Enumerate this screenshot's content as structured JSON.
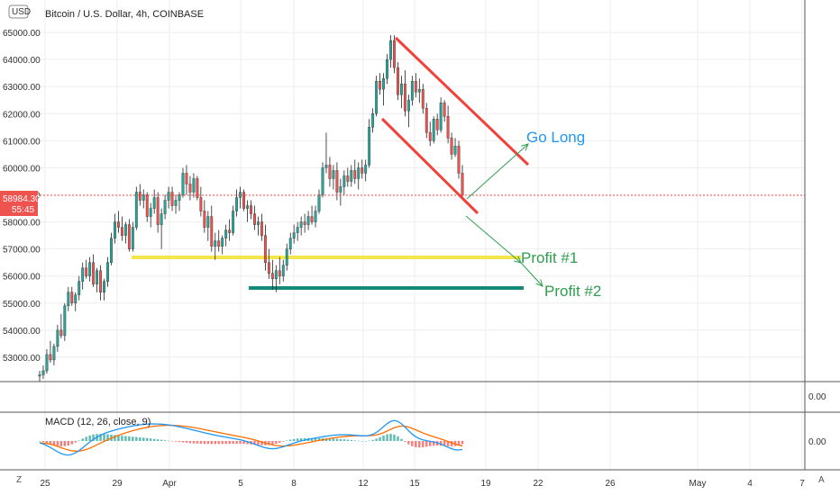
{
  "chart_data": [
    {
      "type": "candlestick",
      "title": "Bitcoin / U.S. Dollar, 4h, COINBASE",
      "y_tick_labels": [
        "53000.00",
        "54000.00",
        "55000.00",
        "56000.00",
        "57000.00",
        "58000.00",
        "59000.00",
        "60000.00",
        "61000.00",
        "62000.00",
        "63000.00",
        "64000.00",
        "65000.00"
      ],
      "y_ticks": [
        53000,
        54000,
        55000,
        56000,
        57000,
        58000,
        59000,
        60000,
        61000,
        62000,
        63000,
        64000,
        65000
      ],
      "x_tick_labels": [
        "25",
        "29",
        "Apr",
        "5",
        "8",
        "12",
        "15",
        "19",
        "22",
        "26",
        "May",
        "4",
        "7"
      ],
      "ylim": [
        52100,
        66200
      ],
      "currency_label": "USD",
      "last_price": {
        "value": "58984.30",
        "countdown": "55:45"
      },
      "colors": {
        "up": "#26a69a",
        "down": "#ef5350",
        "wick": "#222222"
      },
      "candles_ohlc": [
        [
          52300,
          52500,
          52100,
          52350
        ],
        [
          52350,
          52700,
          52200,
          52500
        ],
        [
          52500,
          53300,
          52400,
          53100
        ],
        [
          53100,
          53600,
          52800,
          52900
        ],
        [
          52900,
          53500,
          52700,
          53400
        ],
        [
          53400,
          54200,
          53200,
          54000
        ],
        [
          54000,
          54600,
          53700,
          53800
        ],
        [
          53800,
          55000,
          53600,
          54900
        ],
        [
          54900,
          55600,
          54700,
          55400
        ],
        [
          55400,
          55600,
          54900,
          55000
        ],
        [
          55000,
          55400,
          54700,
          55300
        ],
        [
          55300,
          56000,
          55100,
          55800
        ],
        [
          55800,
          56500,
          55500,
          56300
        ],
        [
          56300,
          56600,
          55900,
          56000
        ],
        [
          56000,
          56700,
          55800,
          56500
        ],
        [
          56500,
          56800,
          55600,
          55700
        ],
        [
          55700,
          56300,
          55400,
          56200
        ],
        [
          56200,
          56400,
          55100,
          55400
        ],
        [
          55400,
          55900,
          55100,
          55800
        ],
        [
          55800,
          56700,
          55600,
          56500
        ],
        [
          56500,
          57600,
          56400,
          57400
        ],
        [
          57400,
          58300,
          57200,
          58000
        ],
        [
          58000,
          58400,
          57600,
          57800
        ],
        [
          57800,
          58200,
          57300,
          57500
        ],
        [
          57500,
          58000,
          57200,
          57900
        ],
        [
          57900,
          58100,
          56900,
          57000
        ],
        [
          57000,
          58000,
          56900,
          57800
        ],
        [
          57800,
          59300,
          57700,
          59100
        ],
        [
          59100,
          59400,
          58600,
          58800
        ],
        [
          58800,
          59200,
          58500,
          59000
        ],
        [
          59000,
          59100,
          58000,
          58200
        ],
        [
          58200,
          58700,
          57800,
          58500
        ],
        [
          58500,
          59200,
          58300,
          58900
        ],
        [
          58900,
          59100,
          57600,
          57900
        ],
        [
          57900,
          58500,
          57000,
          58300
        ],
        [
          58300,
          59000,
          58100,
          58800
        ],
        [
          58800,
          59300,
          58500,
          59100
        ],
        [
          59100,
          59300,
          58400,
          58600
        ],
        [
          58600,
          59000,
          58300,
          58800
        ],
        [
          58800,
          59100,
          58400,
          59000
        ],
        [
          59000,
          60000,
          58900,
          59800
        ],
        [
          59800,
          60100,
          59000,
          59400
        ],
        [
          59400,
          59700,
          58800,
          59100
        ],
        [
          59100,
          59800,
          58900,
          59600
        ],
        [
          59600,
          59700,
          58800,
          58900
        ],
        [
          58900,
          59300,
          58200,
          58400
        ],
        [
          58400,
          58800,
          57600,
          57800
        ],
        [
          57800,
          58400,
          57300,
          58200
        ],
        [
          58200,
          58600,
          56900,
          57100
        ],
        [
          57100,
          57600,
          56600,
          57300
        ],
        [
          57300,
          57700,
          56900,
          57100
        ],
        [
          57100,
          57500,
          56800,
          57400
        ],
        [
          57400,
          57900,
          57100,
          57700
        ],
        [
          57700,
          58100,
          57300,
          57600
        ],
        [
          57600,
          58600,
          57500,
          58400
        ],
        [
          58400,
          59200,
          58200,
          58900
        ],
        [
          58900,
          59300,
          58500,
          59100
        ],
        [
          59100,
          59200,
          58400,
          58500
        ],
        [
          58500,
          58800,
          58000,
          58600
        ],
        [
          58600,
          58800,
          58100,
          58300
        ],
        [
          58300,
          58600,
          57700,
          57900
        ],
        [
          57900,
          58200,
          57500,
          58000
        ],
        [
          58000,
          58300,
          57300,
          57500
        ],
        [
          57500,
          57900,
          56200,
          56500
        ],
        [
          56500,
          57000,
          55900,
          56100
        ],
        [
          56100,
          56600,
          55500,
          55900
        ],
        [
          55900,
          56400,
          55400,
          56200
        ],
        [
          56200,
          56700,
          55700,
          56000
        ],
        [
          56000,
          56600,
          55800,
          56400
        ],
        [
          56400,
          57200,
          56200,
          57000
        ],
        [
          57000,
          57600,
          56800,
          57400
        ],
        [
          57400,
          57900,
          57200,
          57600
        ],
        [
          57600,
          58000,
          57300,
          57800
        ],
        [
          57800,
          58200,
          57500,
          58000
        ],
        [
          58000,
          58300,
          57600,
          57900
        ],
        [
          57900,
          58400,
          57700,
          58200
        ],
        [
          58200,
          58600,
          57900,
          58000
        ],
        [
          58000,
          58600,
          57800,
          58400
        ],
        [
          58400,
          59200,
          58300,
          59000
        ],
        [
          59000,
          60200,
          58900,
          60000
        ],
        [
          60000,
          61300,
          59800,
          60100
        ],
        [
          60100,
          60400,
          59300,
          59600
        ],
        [
          59600,
          60100,
          59200,
          59900
        ],
        [
          59900,
          60200,
          58800,
          59100
        ],
        [
          59100,
          59600,
          58600,
          59300
        ],
        [
          59300,
          59900,
          59000,
          59700
        ],
        [
          59700,
          60000,
          59300,
          59500
        ],
        [
          59500,
          60100,
          59300,
          59900
        ],
        [
          59900,
          60300,
          59400,
          59600
        ],
        [
          59600,
          60200,
          59200,
          60000
        ],
        [
          60000,
          60300,
          59600,
          59800
        ],
        [
          59800,
          60300,
          59500,
          60100
        ],
        [
          60100,
          61800,
          60000,
          61500
        ],
        [
          61500,
          62200,
          61300,
          62000
        ],
        [
          62000,
          63400,
          61900,
          63200
        ],
        [
          63200,
          63500,
          62700,
          62900
        ],
        [
          62900,
          63500,
          62300,
          63300
        ],
        [
          63300,
          64200,
          63100,
          64000
        ],
        [
          64000,
          64900,
          63700,
          64700
        ],
        [
          64700,
          64900,
          63500,
          63700
        ],
        [
          63700,
          63900,
          62500,
          62700
        ],
        [
          62700,
          63400,
          62200,
          63100
        ],
        [
          63100,
          63600,
          61900,
          62100
        ],
        [
          62100,
          62700,
          61500,
          62500
        ],
        [
          62500,
          63400,
          62300,
          63200
        ],
        [
          63200,
          63500,
          62600,
          62800
        ],
        [
          62800,
          63300,
          62400,
          62900
        ],
        [
          62900,
          63100,
          62000,
          62200
        ],
        [
          62200,
          62400,
          61100,
          61300
        ],
        [
          61300,
          61700,
          60800,
          61000
        ],
        [
          61000,
          61900,
          60900,
          61800
        ],
        [
          61800,
          62000,
          61200,
          61400
        ],
        [
          61400,
          62600,
          61300,
          62400
        ],
        [
          62400,
          62500,
          61700,
          61900
        ],
        [
          61900,
          62300,
          60900,
          61100
        ],
        [
          61100,
          61300,
          60300,
          60500
        ],
        [
          60500,
          61100,
          60400,
          60800
        ],
        [
          60800,
          61000,
          59600,
          59800
        ],
        [
          59800,
          60100,
          58900,
          58984.3
        ]
      ]
    },
    {
      "type": "line",
      "title": "MACD (12, 26, close, 9)",
      "y_tick_labels": [
        "0.00"
      ],
      "series": [
        {
          "name": "MACD",
          "color": "#2196f3"
        },
        {
          "name": "signal",
          "color": "#ff6d00"
        },
        {
          "name": "histogram",
          "color": "#26a69a"
        }
      ]
    }
  ],
  "middle_pane": {
    "value_label": "0.00"
  },
  "annotations": {
    "go_long": {
      "text": "Go Long",
      "color": "#2196f3"
    },
    "profit1": {
      "text": "Profit #1",
      "color": "#2e9e4e"
    },
    "profit2": {
      "text": "Profit #2",
      "color": "#2e9e4e"
    },
    "channel_color": "#f2413a",
    "support1_color": "#f3e54a",
    "support2_color": "#16897a",
    "arrow_color": "#2e9e4e",
    "price_line_color": "#ef5350"
  },
  "corner_buttons": {
    "left": "Z",
    "right": "A"
  }
}
